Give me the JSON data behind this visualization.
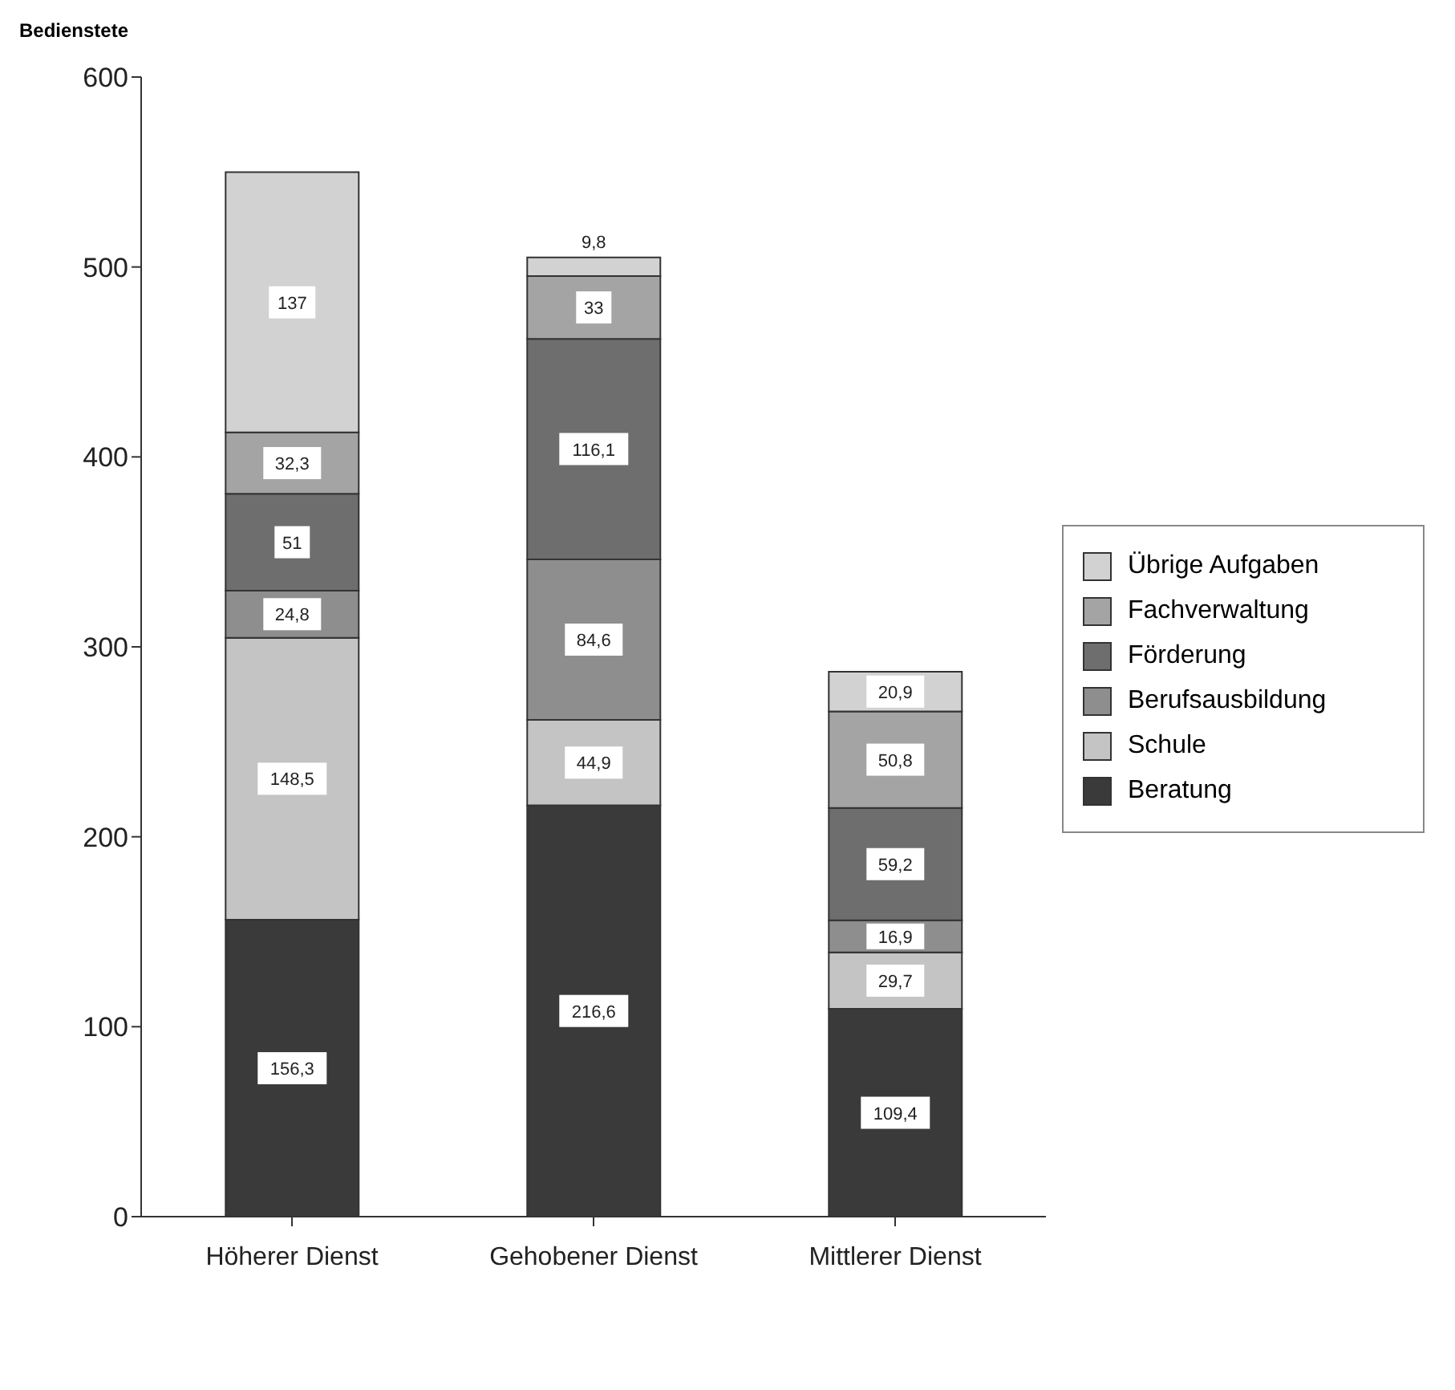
{
  "chart_data": {
    "type": "bar",
    "stacked": true,
    "ylabel": "Bedienstete",
    "categories": [
      "Höherer Dienst",
      "Gehobener Dienst",
      "Mittlerer Dienst"
    ],
    "series": [
      {
        "name": "Beratung",
        "color": "#3a3a3a",
        "values": [
          156.3,
          216.6,
          109.4
        ],
        "value_labels": [
          "156,3",
          "216,6",
          "109,4"
        ]
      },
      {
        "name": "Schule",
        "color": "#c4c4c4",
        "values": [
          148.5,
          44.9,
          29.7
        ],
        "value_labels": [
          "148,5",
          "44,9",
          "29,7"
        ]
      },
      {
        "name": "Berufsausbildung",
        "color": "#8e8e8e",
        "values": [
          24.8,
          84.6,
          16.9
        ],
        "value_labels": [
          "24,8",
          "84,6",
          "16,9"
        ]
      },
      {
        "name": "Förderung",
        "color": "#6e6e6e",
        "values": [
          51,
          116.1,
          59.2
        ],
        "value_labels": [
          "51",
          "116,1",
          "59,2"
        ]
      },
      {
        "name": "Fachverwaltung",
        "color": "#a4a4a4",
        "values": [
          32.3,
          33,
          50.8
        ],
        "value_labels": [
          "32,3",
          "33",
          "50,8"
        ]
      },
      {
        "name": "Übrige Aufgaben",
        "color": "#d2d2d2",
        "values": [
          137,
          9.8,
          20.9
        ],
        "value_labels": [
          "137",
          "9,8",
          "20,9"
        ]
      }
    ],
    "ylim": [
      0,
      600
    ],
    "yticks": [
      0,
      100,
      200,
      300,
      400,
      500,
      600
    ],
    "grid": false,
    "legend": "right"
  }
}
